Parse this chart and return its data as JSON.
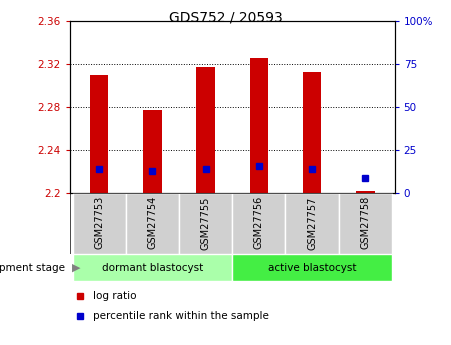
{
  "title": "GDS752 / 20593",
  "samples": [
    "GSM27753",
    "GSM27754",
    "GSM27755",
    "GSM27756",
    "GSM27757",
    "GSM27758"
  ],
  "log_ratio_values": [
    2.31,
    2.277,
    2.317,
    2.325,
    2.312,
    2.202
  ],
  "percentile_rank_values": [
    14,
    13,
    14,
    16,
    14,
    9
  ],
  "baseline": 2.2,
  "ylim_left": [
    2.2,
    2.36
  ],
  "ylim_right": [
    0,
    100
  ],
  "yticks_left": [
    2.2,
    2.24,
    2.28,
    2.32,
    2.36
  ],
  "yticks_right": [
    0,
    25,
    50,
    75,
    100
  ],
  "ytick_labels_left": [
    "2.2",
    "2.24",
    "2.28",
    "2.32",
    "2.36"
  ],
  "ytick_labels_right": [
    "0",
    "25",
    "50",
    "75",
    "100%"
  ],
  "bar_color": "#cc0000",
  "percentile_color": "#0000cc",
  "bar_width": 0.35,
  "groups": [
    {
      "label": "dormant blastocyst",
      "indices": [
        0,
        1,
        2
      ],
      "color": "#aaffaa"
    },
    {
      "label": "active blastocyst",
      "indices": [
        3,
        4,
        5
      ],
      "color": "#44ee44"
    }
  ],
  "group_label_prefix": "development stage",
  "left_tick_color": "#cc0000",
  "right_tick_color": "#0000cc",
  "grid_color": "black",
  "legend_items": [
    "log ratio",
    "percentile rank within the sample"
  ],
  "legend_colors": [
    "#cc0000",
    "#0000cc"
  ],
  "cell_bg": "#d0d0d0",
  "plot_bg": "white"
}
